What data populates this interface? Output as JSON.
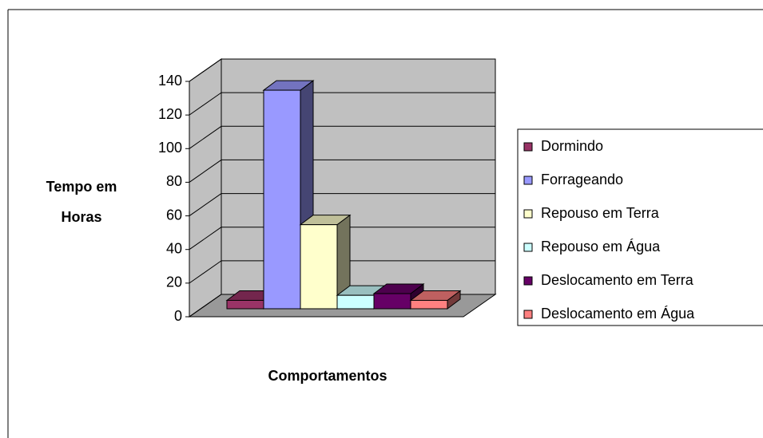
{
  "chart_data": {
    "type": "bar",
    "categories": [
      null
    ],
    "series": [
      {
        "name": "Dormindo",
        "color": "#993366",
        "values": [
          5
        ]
      },
      {
        "name": "Forrageando",
        "color": "#9999ff",
        "values": [
          130
        ]
      },
      {
        "name": "Repouso em Terra",
        "color": "#ffffcc",
        "values": [
          50
        ]
      },
      {
        "name": "Repouso em Água",
        "color": "#ccffff",
        "values": [
          8
        ]
      },
      {
        "name": "Deslocamento em Terra",
        "color": "#660066",
        "values": [
          9
        ]
      },
      {
        "name": "Deslocamento em Água",
        "color": "#ff8080",
        "values": [
          5
        ]
      }
    ],
    "xlabel": "Comportamentos",
    "ylabel": "Tempo em Horas",
    "ylim": [
      0,
      140
    ],
    "yticks": [
      0,
      20,
      40,
      60,
      80,
      100,
      120,
      140
    ],
    "grid": true,
    "legend": "right",
    "wall_color": "#c0c0c0"
  }
}
